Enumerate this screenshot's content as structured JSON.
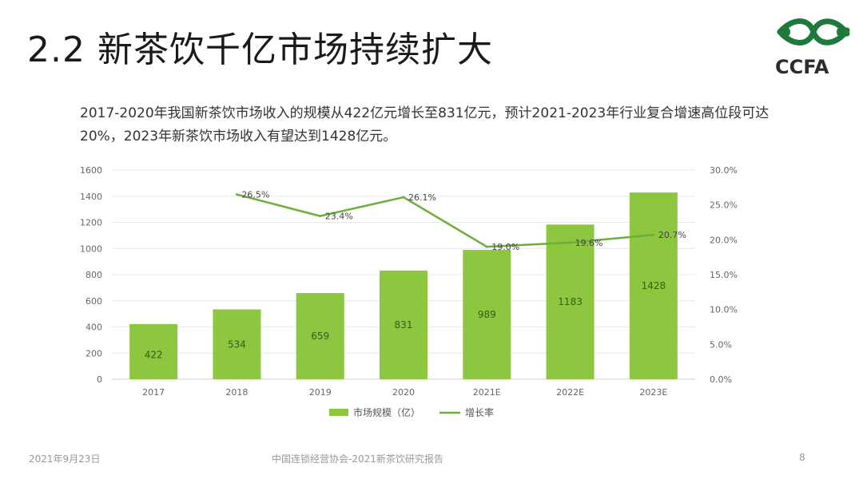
{
  "page": {
    "title": "2.2 新茶饮千亿市场持续扩大",
    "logo_text": "CCFA",
    "subtitle": "2017-2020年我国新茶饮市场收入的规模从422亿元增长至831亿元，预计2021-2023年行业复合增速高位段可达20%，2023年新茶饮市场收入有望达到1428亿元。",
    "footer_date": "2021年9月23日",
    "footer_source": "中国连锁经营协会-2021新茶饮研究报告",
    "page_number": "8"
  },
  "colors": {
    "bar": "#8DC63F",
    "line": "#6FAE3A",
    "logo": "#1E7A3C"
  },
  "chart_data": {
    "type": "bar",
    "categories": [
      "2017",
      "2018",
      "2019",
      "2020",
      "2021E",
      "2022E",
      "2023E"
    ],
    "series": [
      {
        "name": "市场规模（亿）",
        "type": "bar",
        "axis": "left",
        "values": [
          422,
          534,
          659,
          831,
          989,
          1183,
          1428
        ],
        "labels": [
          "422",
          "534",
          "659",
          "831",
          "989",
          "1183",
          "1428"
        ]
      },
      {
        "name": "增长率",
        "type": "line",
        "axis": "right",
        "values": [
          null,
          26.5,
          23.4,
          26.1,
          19.0,
          19.6,
          20.7
        ],
        "labels": [
          "",
          "26.5%",
          "23.4%",
          "26.1%",
          "19.0%",
          "19.6%",
          "20.7%"
        ]
      }
    ],
    "y_left": {
      "min": 0,
      "max": 1600,
      "ticks": [
        "0",
        "200",
        "400",
        "600",
        "800",
        "1000",
        "1200",
        "1400",
        "1600"
      ]
    },
    "y_right": {
      "min": 0,
      "max": 30,
      "ticks": [
        "0.0%",
        "5.0%",
        "10.0%",
        "15.0%",
        "20.0%",
        "25.0%",
        "30.0%"
      ]
    },
    "grid": true,
    "legend_position": "bottom"
  }
}
